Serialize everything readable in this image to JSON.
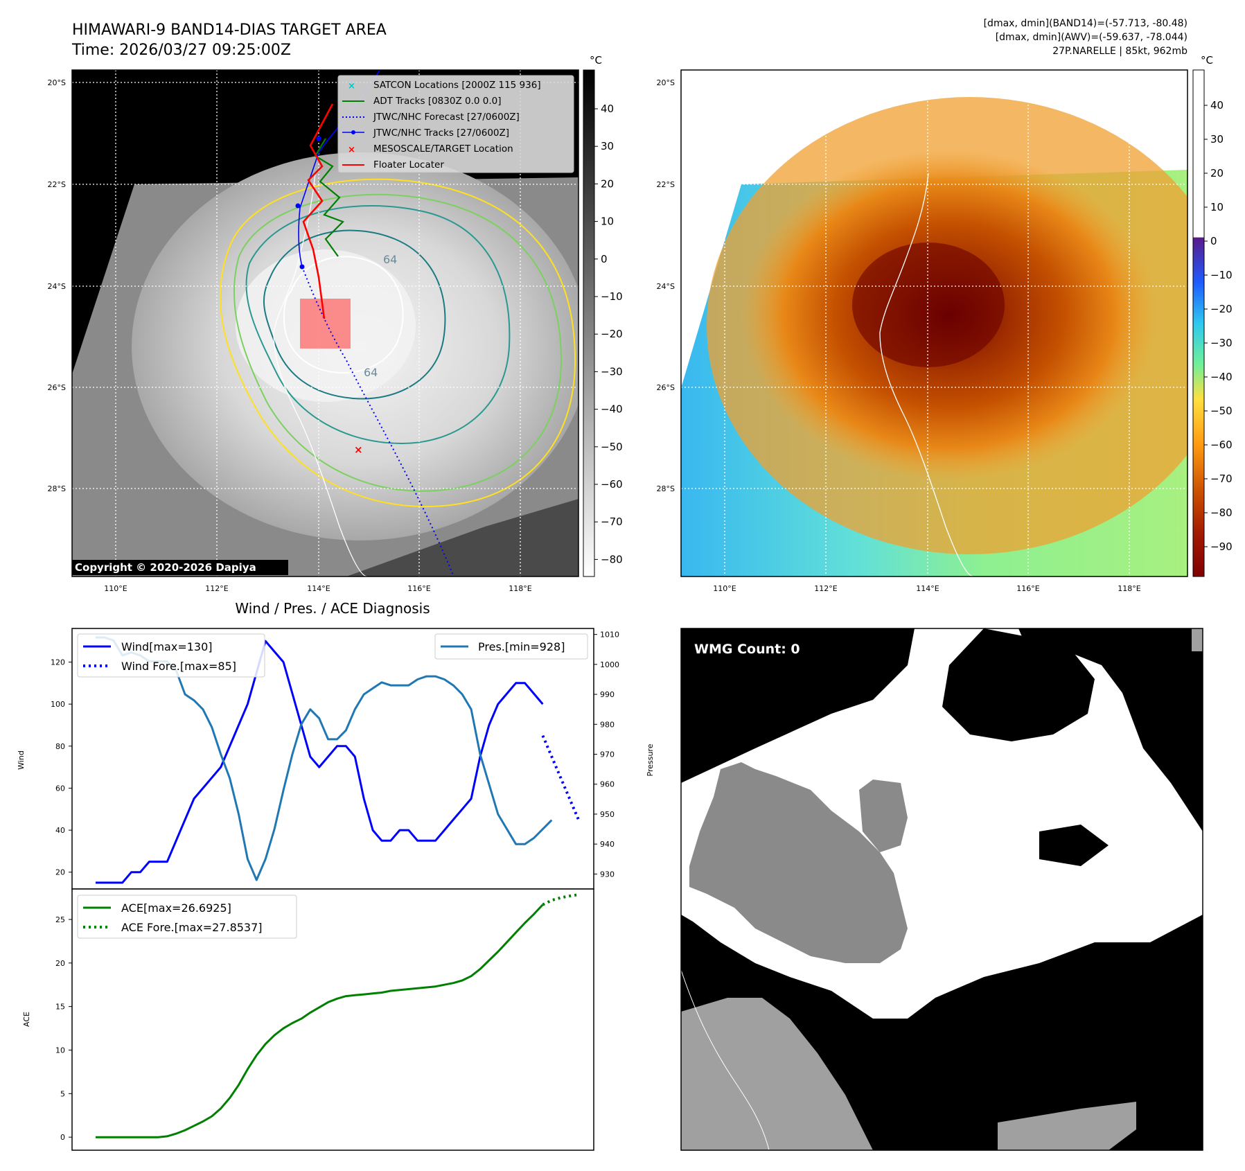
{
  "header": {
    "title_line1": "HIMAWARI-9 BAND14-DIAS TARGET AREA",
    "title_line2": "Time: 2026/03/27 09:25:00Z",
    "info_line1": "[dmax, dmin](BAND14)=(-57.713, -80.48)",
    "info_line2": "[dmax, dmin](AWV)=(-59.637, -78.044)",
    "info_line3": "27P.NARELLE | 85kt, 962mb"
  },
  "map": {
    "lat_labels": [
      "20°S",
      "22°S",
      "24°S",
      "26°S",
      "28°S"
    ],
    "lon_labels": [
      "110°E",
      "112°E",
      "114°E",
      "116°E",
      "118°E"
    ],
    "copyright": "Copyright © 2020-2026 Dapiya",
    "contour_label_a": "64",
    "contour_label_b": "64",
    "legend": [
      {
        "label": "SATCON Locations [2000Z 115 936]",
        "color": "#00c8c8"
      },
      {
        "label": "ADT Tracks [0830Z 0.0 0.0]",
        "color": "#008000"
      },
      {
        "label": "JTWC/NHC Forecast [27/0600Z]",
        "color": "#0000ff"
      },
      {
        "label": "JTWC/NHC Tracks [27/0600Z]",
        "color": "#0000ff"
      },
      {
        "label": "MESOSCALE/TARGET Location",
        "color": "#ff0000"
      },
      {
        "label": "Floater Locater",
        "color": "#ff0000"
      }
    ]
  },
  "colorbar1": {
    "unit": "°C",
    "ticks": [
      "40",
      "30",
      "20",
      "10",
      "0",
      "−10",
      "−20",
      "−30",
      "−40",
      "−50",
      "−60",
      "−70",
      "−80"
    ]
  },
  "colorbar2": {
    "unit": "°C",
    "ticks": [
      "40",
      "30",
      "20",
      "10",
      "0",
      "−10",
      "−20",
      "−30",
      "−40",
      "−50",
      "−60",
      "−70",
      "−80",
      "−90"
    ]
  },
  "wmg": {
    "label": "WMG Count: 0"
  },
  "colors": {
    "wind": "#0000ff",
    "pres": "#1f77b4",
    "ace": "#008000"
  },
  "chart_data": [
    {
      "type": "line",
      "title": "Wind / Pres. / ACE Diagnosis",
      "xlabel": "",
      "ylabel": "Wind",
      "ylabel_right": "Pressure",
      "ylim": [
        12,
        136
      ],
      "ylim_right": [
        925,
        1012
      ],
      "yticks": [
        20,
        40,
        60,
        80,
        100,
        120
      ],
      "yticks_right": [
        930,
        940,
        950,
        960,
        970,
        980,
        990,
        1000,
        1010
      ],
      "legend_left": [
        "Wind[max=130]",
        "Wind Fore.[max=85]"
      ],
      "legend_right": [
        "Pres.[min=928]"
      ],
      "series": [
        {
          "name": "Wind",
          "axis": "left",
          "style": "solid",
          "color": "#0000ff",
          "x": [
            0,
            1,
            2,
            3,
            4,
            5,
            6,
            7,
            8,
            9,
            10,
            11,
            12,
            13,
            14,
            15,
            16,
            17,
            18,
            19,
            20,
            21,
            22,
            23,
            24,
            25,
            26,
            27,
            28,
            29,
            30,
            31,
            32,
            33,
            34,
            35,
            36,
            37,
            38,
            39,
            40,
            41,
            42,
            43,
            44,
            45,
            46,
            47,
            48,
            49,
            50
          ],
          "values": [
            15,
            15,
            15,
            15,
            20,
            20,
            25,
            25,
            25,
            35,
            45,
            55,
            60,
            65,
            70,
            80,
            90,
            100,
            115,
            130,
            125,
            120,
            105,
            90,
            75,
            70,
            75,
            80,
            80,
            75,
            55,
            40,
            35,
            35,
            40,
            40,
            35,
            35,
            35,
            40,
            45,
            50,
            55,
            75,
            90,
            100,
            105,
            110,
            110,
            105,
            100
          ]
        },
        {
          "name": "Wind Fore.",
          "axis": "left",
          "style": "dotted",
          "color": "#0000ff",
          "x": [
            50,
            51,
            52,
            53,
            54
          ],
          "values": [
            85,
            75,
            65,
            55,
            45
          ]
        },
        {
          "name": "Pres.",
          "axis": "right",
          "style": "solid",
          "color": "#1f77b4",
          "x": [
            0,
            1,
            2,
            3,
            4,
            5,
            6,
            7,
            8,
            9,
            10,
            11,
            12,
            13,
            14,
            15,
            16,
            17,
            18,
            19,
            20,
            21,
            22,
            23,
            24,
            25,
            26,
            27,
            28,
            29,
            30,
            31,
            32,
            33,
            34,
            35,
            36,
            37,
            38,
            39,
            40,
            41,
            42,
            43,
            44,
            45,
            46,
            47,
            48,
            49,
            50,
            51
          ],
          "values": [
            1009,
            1009,
            1008,
            1003,
            1004,
            1003,
            1001,
            1001,
            1001,
            998,
            990,
            988,
            985,
            979,
            970,
            962,
            950,
            935,
            928,
            935,
            945,
            958,
            970,
            980,
            985,
            982,
            975,
            975,
            978,
            985,
            990,
            992,
            994,
            993,
            993,
            993,
            995,
            996,
            996,
            995,
            993,
            990,
            985,
            970,
            960,
            950,
            945,
            940,
            940,
            942,
            945,
            948
          ]
        },
        {
          "name": "ACE",
          "axis": "left2",
          "style": "solid",
          "color": "#008000",
          "x": [
            0,
            1,
            2,
            3,
            4,
            5,
            6,
            7,
            8,
            9,
            10,
            11,
            12,
            13,
            14,
            15,
            16,
            17,
            18,
            19,
            20,
            21,
            22,
            23,
            24,
            25,
            26,
            27,
            28,
            29,
            30,
            31,
            32,
            33,
            34,
            35,
            36,
            37,
            38,
            39,
            40,
            41,
            42,
            43,
            44,
            45,
            46,
            47,
            48,
            49,
            50
          ],
          "values": [
            0,
            0,
            0,
            0,
            0,
            0,
            0,
            0,
            0.1,
            0.4,
            0.8,
            1.3,
            1.8,
            2.4,
            3.3,
            4.5,
            6.0,
            7.8,
            9.4,
            10.7,
            11.7,
            12.5,
            13.1,
            13.6,
            14.3,
            14.9,
            15.5,
            15.9,
            16.2,
            16.3,
            16.4,
            16.5,
            16.6,
            16.8,
            16.9,
            17.0,
            17.1,
            17.2,
            17.3,
            17.5,
            17.7,
            18.0,
            18.5,
            19.3,
            20.3,
            21.3,
            22.4,
            23.5,
            24.6,
            25.6,
            26.7
          ]
        },
        {
          "name": "ACE Fore.",
          "axis": "left2",
          "style": "dotted",
          "color": "#008000",
          "x": [
            50,
            51,
            52,
            53,
            54
          ],
          "values": [
            26.7,
            27.2,
            27.5,
            27.7,
            27.85
          ]
        }
      ],
      "ace": {
        "ylabel": "ACE",
        "ylim": [
          -1.5,
          28.5
        ],
        "yticks": [
          0,
          5,
          10,
          15,
          20,
          25
        ],
        "legend": [
          "ACE[max=26.6925]",
          "ACE Fore.[max=27.8537]"
        ]
      }
    }
  ]
}
